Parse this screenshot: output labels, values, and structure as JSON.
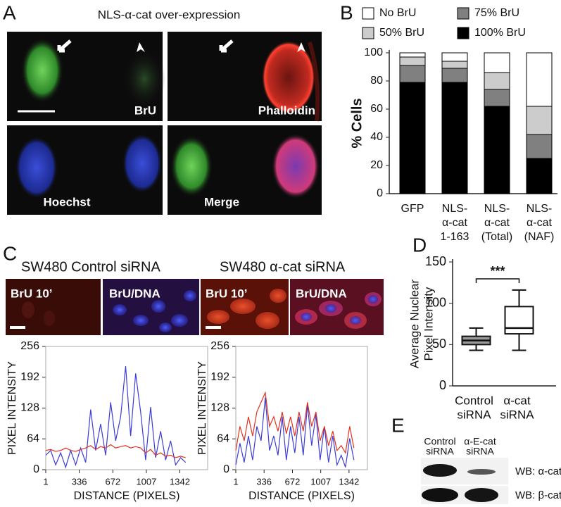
{
  "panel_labels": [
    "A",
    "B",
    "C",
    "D",
    "E"
  ],
  "panel_a": {
    "title": "NLS-α-cat over-expression",
    "image_labels": [
      "BrU",
      "Phalloidin",
      "Hoechst",
      "Merge"
    ]
  },
  "panel_c": {
    "titles": [
      "SW480 Control siRNA",
      "SW480 α-cat siRNA"
    ],
    "image_labels": [
      "BrU 10’",
      "BrU/DNA",
      "BrU 10’",
      "BrU/DNA"
    ]
  },
  "panel_e": {
    "lanes": [
      [
        "Control",
        "siRNA"
      ],
      [
        "α-E-cat",
        "siRNA"
      ]
    ],
    "blots": [
      "WB: α-cat",
      "WB: β-cat"
    ]
  },
  "chart_data": [
    {
      "type": "bar",
      "ylabel": "% Cells",
      "categories": [
        [
          "GFP"
        ],
        [
          "NLS-",
          "α-cat",
          "1-163"
        ],
        [
          "NLS-",
          "α-cat",
          "(Total)"
        ],
        [
          "NLS-",
          "α-cat",
          "(NAF)"
        ]
      ],
      "series": [
        {
          "name": "100% BrU",
          "color": "#000000",
          "values": [
            79,
            79,
            62,
            25
          ]
        },
        {
          "name": "75% BrU",
          "color": "#808080",
          "values": [
            12,
            10,
            12,
            17
          ]
        },
        {
          "name": "50% BrU",
          "color": "#cccccc",
          "values": [
            6,
            5,
            12,
            20
          ]
        },
        {
          "name": "No BrU",
          "color": "#ffffff",
          "values": [
            3,
            6,
            14,
            38
          ]
        }
      ],
      "stacked": true,
      "ylim": [
        0,
        100
      ],
      "yticks": [
        0,
        20,
        40,
        60,
        80,
        100
      ]
    },
    {
      "type": "line",
      "xlabel": "DISTANCE (PIXELS)",
      "ylabel": "PIXEL INTENSITY",
      "x": [
        1,
        50,
        100,
        150,
        200,
        250,
        300,
        350,
        400,
        450,
        500,
        550,
        600,
        650,
        700,
        750,
        800,
        850,
        900,
        950,
        1000,
        1050,
        1100,
        1150,
        1200,
        1250,
        1300,
        1350,
        1400
      ],
      "series": [
        {
          "color": "#3b3bd6",
          "values": [
            30,
            40,
            10,
            35,
            5,
            40,
            10,
            45,
            15,
            125,
            40,
            95,
            30,
            140,
            60,
            110,
            215,
            70,
            200,
            120,
            20,
            130,
            25,
            80,
            20,
            60,
            10,
            25,
            15
          ]
        },
        {
          "color": "#e0301e",
          "values": [
            40,
            42,
            38,
            40,
            45,
            40,
            38,
            42,
            45,
            50,
            42,
            48,
            45,
            52,
            45,
            48,
            50,
            45,
            48,
            45,
            35,
            42,
            30,
            35,
            28,
            30,
            25,
            28,
            25
          ]
        }
      ],
      "xlim": [
        1,
        1620
      ],
      "xticks": [
        1,
        336,
        672,
        1007,
        1342
      ],
      "ylim": [
        0,
        256
      ],
      "yticks": [
        0,
        64,
        128,
        192,
        256
      ]
    },
    {
      "type": "line",
      "xlabel": "DISTANCE (PIXELS)",
      "ylabel": "PIXEL INTENSITY",
      "x": [
        1,
        50,
        100,
        150,
        200,
        250,
        300,
        350,
        400,
        450,
        500,
        550,
        600,
        650,
        700,
        750,
        800,
        850,
        900,
        950,
        1000,
        1050,
        1100,
        1150,
        1200,
        1250,
        1300,
        1350,
        1400
      ],
      "series": [
        {
          "color": "#3b3bd6",
          "values": [
            10,
            55,
            15,
            70,
            20,
            90,
            60,
            150,
            40,
            70,
            30,
            110,
            20,
            90,
            35,
            110,
            30,
            135,
            50,
            115,
            20,
            90,
            15,
            70,
            10,
            30,
            5,
            65,
            20
          ]
        },
        {
          "color": "#e0301e",
          "values": [
            40,
            90,
            60,
            110,
            70,
            120,
            140,
            160,
            90,
            110,
            80,
            120,
            75,
            110,
            70,
            120,
            80,
            140,
            90,
            120,
            60,
            90,
            50,
            80,
            40,
            50,
            35,
            90,
            45
          ]
        }
      ],
      "xlim": [
        1,
        1560
      ],
      "xticks": [
        1,
        336,
        672,
        1007,
        1342
      ],
      "ylim": [
        0,
        256
      ],
      "yticks": [
        0,
        64,
        128,
        192,
        256
      ]
    },
    {
      "type": "box",
      "ylabel": [
        "Average Nuclear",
        "Pixel Intensity"
      ],
      "categories": [
        [
          "Control",
          "siRNA"
        ],
        [
          "α-cat",
          "siRNA"
        ]
      ],
      "boxes": [
        {
          "min": 43,
          "q1": 50,
          "median": 55,
          "q3": 60,
          "max": 70
        },
        {
          "min": 43,
          "q1": 63,
          "median": 70,
          "q3": 96,
          "max": 116
        }
      ],
      "colors": [
        "#999999",
        "#ffffff"
      ],
      "annotation": "***",
      "ylim": [
        0,
        150
      ],
      "yticks": [
        0,
        50,
        100,
        150
      ]
    }
  ]
}
